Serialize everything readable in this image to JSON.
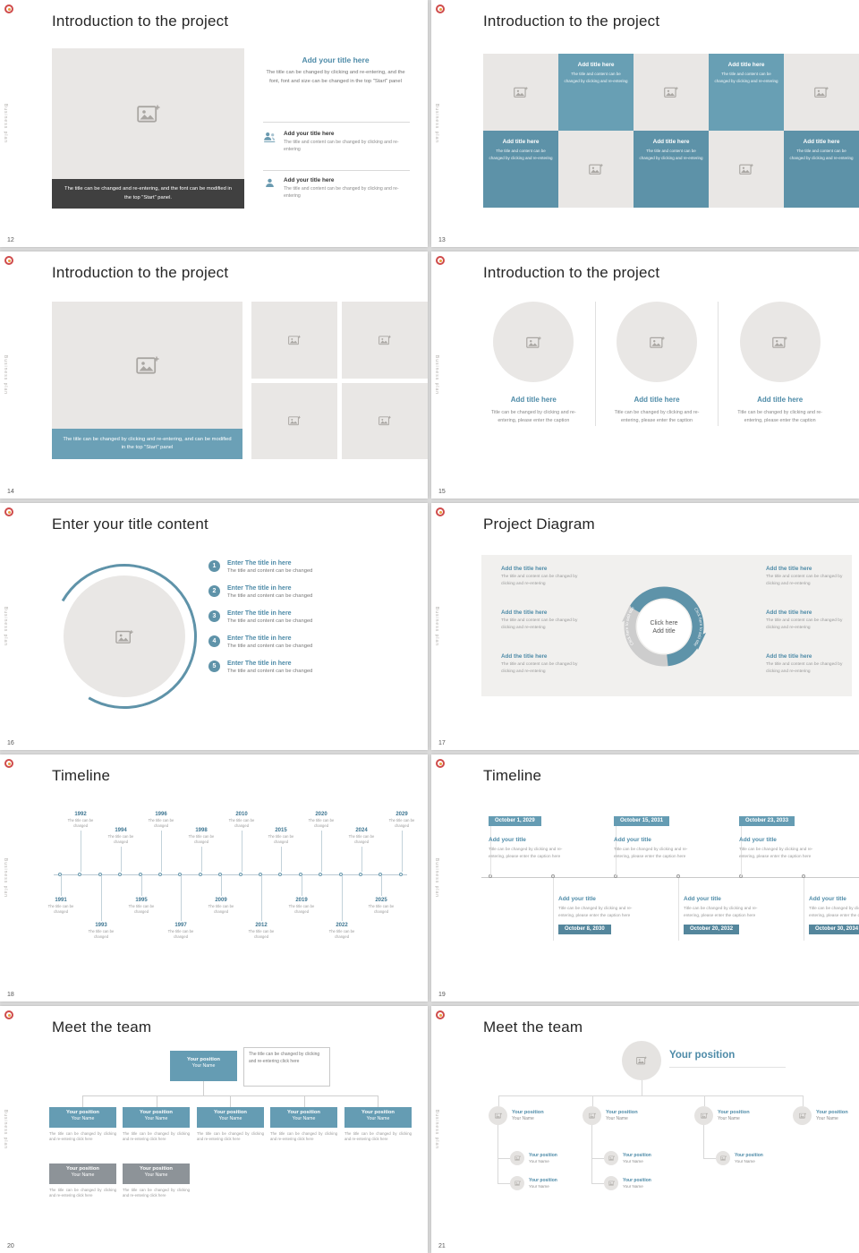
{
  "common": {
    "side_text": "Business plan",
    "accent": "#659cb3"
  },
  "slides": {
    "s12": {
      "page": "12",
      "title": "Introduction to the project",
      "image_caption": "The title can be changed and re-entering, and the font can be modified in the top \"Start\" panel.",
      "main_heading": "Add your title here",
      "main_body": "The title can be changed by clicking and re-entering, and the font, font and size can be changed in the top \"Start\" panel",
      "items": [
        {
          "heading": "Add your title here",
          "body": "The title and content can be changed by clicking and re-entering"
        },
        {
          "heading": "Add your title here",
          "body": "The title and content can be changed by clicking and re-entering"
        }
      ]
    },
    "s13": {
      "page": "13",
      "title": "Introduction to the project",
      "cell_heading": "Add title here",
      "cell_body": "The title and content can be changed by clicking and re-entering"
    },
    "s14": {
      "page": "14",
      "title": "Introduction to the project",
      "image_caption": "The title can be changed by clicking and re-entering, and can be modified in the top \"Start\" panel"
    },
    "s15": {
      "page": "15",
      "title": "Introduction to the project",
      "col_heading": "Add title here",
      "col_body": "Title can be changed by clicking and re-entering, please enter the caption"
    },
    "s16": {
      "page": "16",
      "title": "Enter your title content",
      "numbers": [
        "1",
        "2",
        "3",
        "4",
        "5"
      ],
      "item_heading": "Enter The title in here",
      "item_body": "The title and content can be changed"
    },
    "s17": {
      "page": "17",
      "title": "Project Diagram",
      "center_top": "Click here",
      "center_bottom": "Add title",
      "arc_label": "Click here to add title",
      "item_heading": "Add the title here",
      "item_body": "The title and content can be changed by clicking and re-entering"
    },
    "s18": {
      "page": "18",
      "title": "Timeline",
      "caption": "The title can be changed",
      "years_top": [
        "1992",
        "1994",
        "1996",
        "1998",
        "2010",
        "2015",
        "2020",
        "2024",
        "2029"
      ],
      "years_bottom": [
        "1991",
        "1993",
        "1995",
        "1997",
        "2009",
        "2012",
        "2019",
        "2022",
        "2025"
      ]
    },
    "s19": {
      "page": "19",
      "title": "Timeline",
      "entry_heading": "Add your title",
      "entry_body": "Title can be changed by clicking and re-entering, please enter the caption here",
      "dates_top": [
        "October 1, 2029",
        "October 15, 2031",
        "October 23, 2033"
      ],
      "dates_bottom": [
        "October 8, 2030",
        "October 20, 2032",
        "October 30, 2034"
      ]
    },
    "s20": {
      "page": "20",
      "title": "Meet the team",
      "position": "Your position",
      "name": "Your Name",
      "note": "The title can be changed by clicking and re-entering click here",
      "caption": "The title can be changed by clicking and re-entering click here"
    },
    "s21": {
      "page": "21",
      "title": "Meet the team",
      "position": "Your position",
      "name": "Your Name"
    }
  }
}
